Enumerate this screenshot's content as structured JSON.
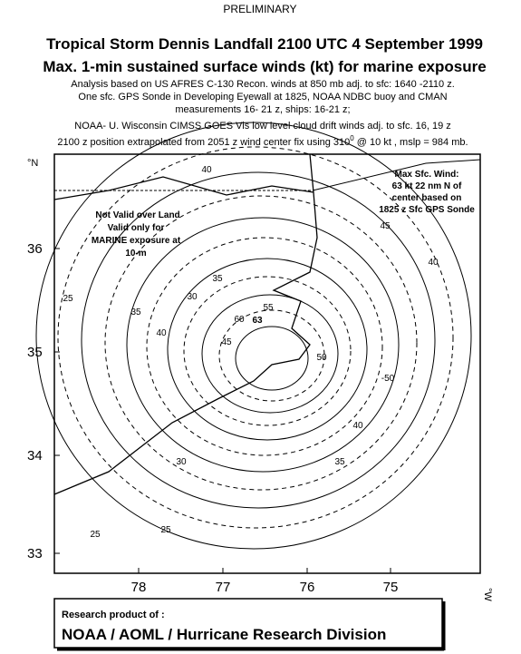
{
  "header": {
    "label": "PRELIMINARY",
    "title_lines": [
      "Tropical Storm Dennis Landfall 2100 UTC 4 September 1999",
      "Max. 1-min sustained surface winds (kt) for marine exposure"
    ],
    "notes": [
      "Analysis based on US AFRES C-130 Recon. winds at 850 mb adj. to sfc: 1640 -2110 z.",
      "One sfc. GPS Sonde in Developing Eyewall  at 1825,  NOAA NDBC buoy and CMAN",
      "measurements 16- 21 z, ships: 16-21 z;",
      "NOAA- U. Wisconsin CIMSS GOES Vis low level cloud drift winds adj. to sfc. 16, 19 z"
    ],
    "position_note": {
      "before": "2100 z  position extrapolated from 2051 z wind center fix  using 310",
      "superscript": "0",
      "after": " @ 10 kt , mslp = 984 mb."
    }
  },
  "map": {
    "lat_unit": "°N",
    "lon_unit": "°W",
    "lat_labels": [
      "36",
      "35",
      "34",
      "33"
    ],
    "lon_labels": [
      "78",
      "77",
      "76",
      "75"
    ],
    "max_wind_note": [
      "Max Sfc. Wind:",
      "63 kt  22 nm N of",
      "center based on",
      "1825 z Sfc GPS Sonde"
    ],
    "validity_note": [
      "Not Valid over Land",
      "Valid only for",
      "MARINE exposure at",
      "10-m"
    ],
    "contour_labels": [
      "40",
      "45",
      "40",
      "25",
      "35",
      "30",
      "35",
      "40",
      "45",
      "55",
      "60",
      "63",
      "50",
      "-50",
      "40",
      "35",
      "30",
      "25",
      "25"
    ]
  },
  "footer": {
    "line1": "Research product of :",
    "line2": "NOAA / AOML / Hurricane Research Division"
  }
}
